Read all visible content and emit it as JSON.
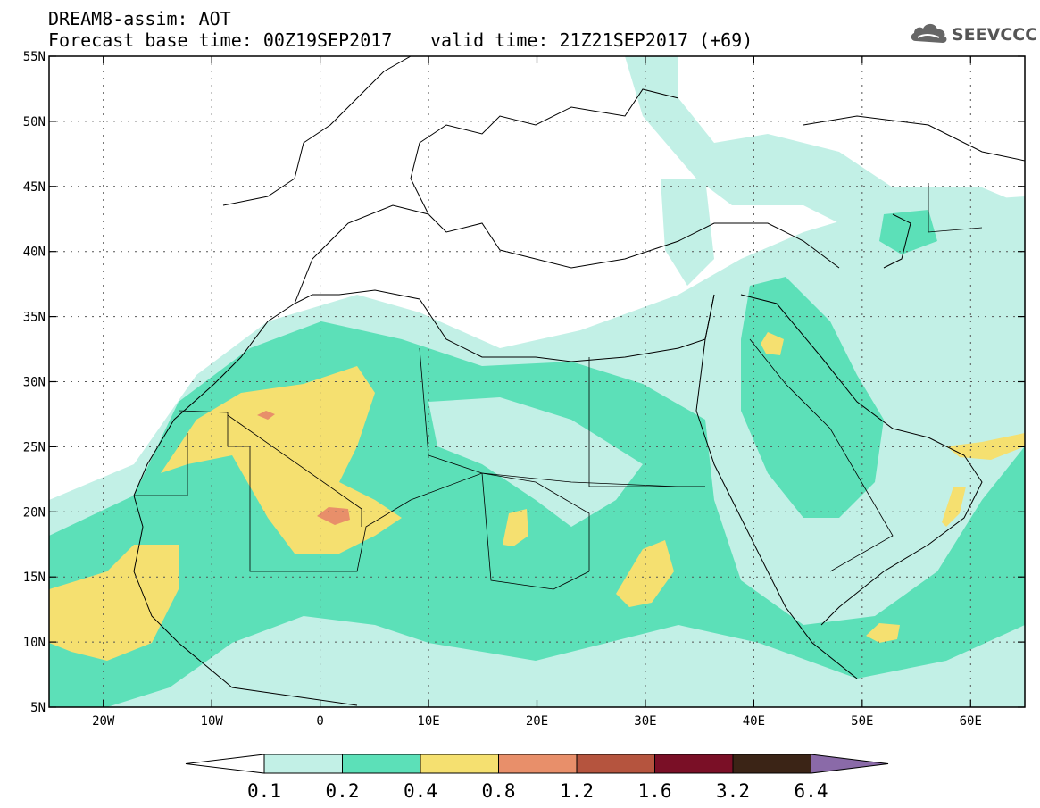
{
  "header": {
    "title_line1": "DREAM8-assim: AOT",
    "title_line2": "Forecast base time: 00Z19SEP2017",
    "valid_label": "valid time: 21Z21SEP2017 (+69)",
    "logo_text": "SEEVCCC"
  },
  "map": {
    "lon_range": [
      -25,
      65
    ],
    "lat_range": [
      5,
      55
    ],
    "lat_labels": [
      "5N",
      "10N",
      "15N",
      "20N",
      "25N",
      "30N",
      "35N",
      "40N",
      "45N",
      "50N",
      "55N"
    ],
    "lat_values": [
      5,
      10,
      15,
      20,
      25,
      30,
      35,
      40,
      45,
      50,
      55
    ],
    "lon_labels": [
      "20W",
      "10W",
      "0",
      "10E",
      "20E",
      "30E",
      "40E",
      "50E",
      "60E"
    ],
    "lon_values": [
      -20,
      -10,
      0,
      10,
      20,
      30,
      40,
      50,
      60
    ]
  },
  "colorbar": {
    "levels": [
      "0.1",
      "0.2",
      "0.4",
      "0.8",
      "1.2",
      "1.6",
      "3.2",
      "6.4"
    ],
    "colors": [
      "#ffffff",
      "#c2f0e6",
      "#5ce0b8",
      "#f5e070",
      "#e88f6a",
      "#b5543e",
      "#7a0f26",
      "#3b2416",
      "#8a6aa8"
    ]
  }
}
